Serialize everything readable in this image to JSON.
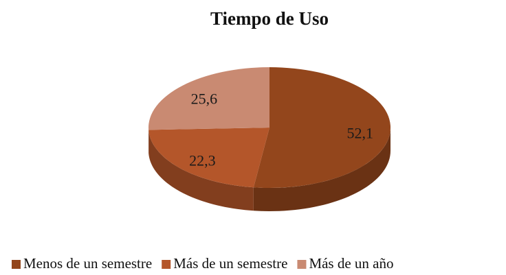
{
  "chart_data": {
    "type": "pie",
    "title": "Tiempo de Uso",
    "categories": [
      "Menos de un semestre",
      "Más de un semestre",
      "Más de un año"
    ],
    "values": [
      52.1,
      22.3,
      25.6
    ],
    "value_labels": [
      "52,1",
      "22,3",
      "25,6"
    ],
    "colors": [
      "#93461c",
      "#b4562a",
      "#c98a72"
    ],
    "legend": "bottom"
  }
}
